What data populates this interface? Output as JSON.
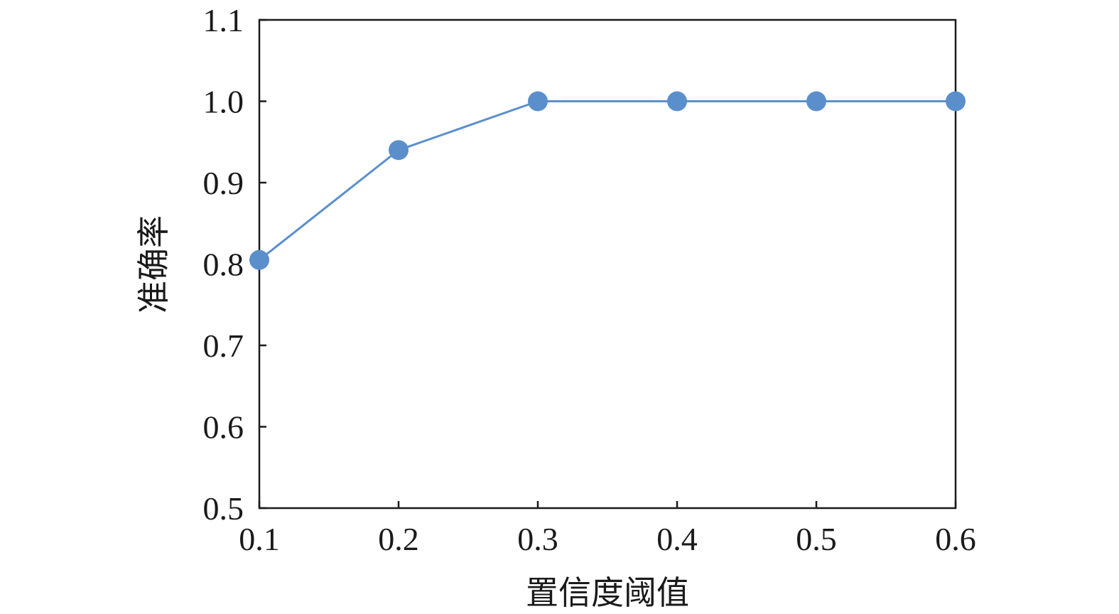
{
  "chart_data": {
    "type": "line",
    "title": "",
    "xlabel": "置信度阈值",
    "ylabel": "准确率",
    "x": [
      0.1,
      0.2,
      0.3,
      0.4,
      0.5,
      0.6
    ],
    "xlim": [
      0.1,
      0.6
    ],
    "ylim": [
      0.5,
      1.1
    ],
    "x_ticks": [
      "0.1",
      "0.2",
      "0.3",
      "0.4",
      "0.5",
      "0.6"
    ],
    "y_ticks": [
      "0.5",
      "0.6",
      "0.7",
      "0.8",
      "0.9",
      "1.0",
      "1.1"
    ],
    "grid": false,
    "legend": "none",
    "series": [
      {
        "values": [
          0.805,
          0.94,
          1.0,
          1.0,
          1.0,
          1.0
        ],
        "color": "#5b8fcc",
        "marker": "circle"
      }
    ]
  },
  "colors": {
    "axis": "#1a1a1a",
    "line": "#5b8fcc",
    "marker": "#5b8fcc"
  }
}
